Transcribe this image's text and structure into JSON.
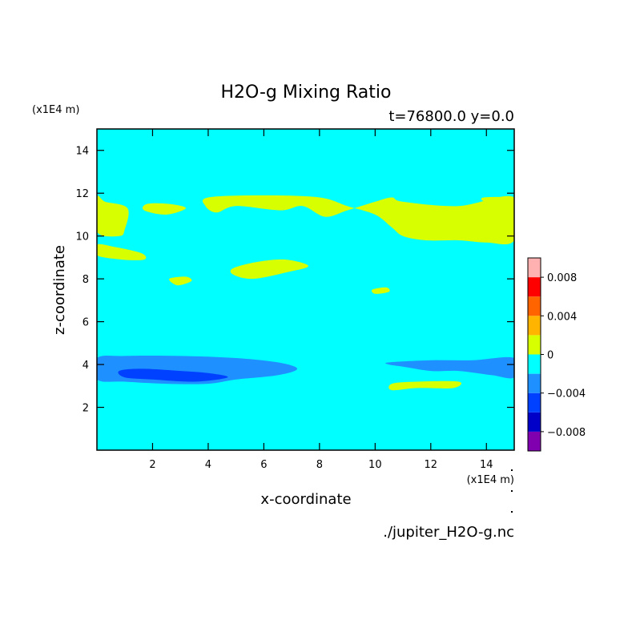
{
  "chart_data": {
    "type": "heatmap",
    "title": "H2O-g Mixing Ratio",
    "subtitle": "t=76800.0 y=0.0",
    "xlabel": "x-coordinate",
    "ylabel": "z-coordinate",
    "x_unit": "(x1E4 m)",
    "y_unit": "(x1E4 m)",
    "source": "./jupiter_H2O-g.nc",
    "xlim": [
      0,
      15
    ],
    "ylim": [
      0,
      15
    ],
    "x_ticks": [
      2,
      4,
      6,
      8,
      10,
      12,
      14
    ],
    "y_ticks": [
      2,
      4,
      6,
      8,
      10,
      12,
      14
    ],
    "background_level": "-0.002 to 0",
    "colorbar": {
      "levels": [
        {
          "range": [
            -0.01,
            -0.008
          ],
          "color": "#8000b0"
        },
        {
          "range": [
            -0.008,
            -0.006
          ],
          "color": "#0000c8"
        },
        {
          "range": [
            -0.006,
            -0.004
          ],
          "color": "#0040ff"
        },
        {
          "range": [
            -0.004,
            -0.002
          ],
          "color": "#1e90ff"
        },
        {
          "range": [
            -0.002,
            0
          ],
          "color": "#00ffff"
        },
        {
          "range": [
            0,
            0.002
          ],
          "color": "#d8ff00"
        },
        {
          "range": [
            0.002,
            0.004
          ],
          "color": "#ffb400"
        },
        {
          "range": [
            0.004,
            0.006
          ],
          "color": "#ff6400"
        },
        {
          "range": [
            0.006,
            0.008
          ],
          "color": "#ff0000"
        },
        {
          "range": [
            0.008,
            0.01
          ],
          "color": "#ffb0b0"
        }
      ],
      "tick_labels": [
        {
          "value": 0.008,
          "label": "0.008"
        },
        {
          "value": 0.004,
          "label": "0.004"
        },
        {
          "value": 0,
          "label": "0"
        },
        {
          "value": -0.004,
          "label": "−0.004"
        },
        {
          "value": -0.008,
          "label": "−0.008"
        }
      ]
    },
    "regions": [
      {
        "name": "moist-band-upper",
        "level": "0 to 0.002",
        "color": "#d8ff00",
        "points": [
          [
            0,
            11.8
          ],
          [
            0.3,
            11.6
          ],
          [
            1.1,
            11.3
          ],
          [
            1.0,
            10.3
          ],
          [
            0.8,
            10.0
          ],
          [
            0,
            10.2
          ]
        ]
      },
      {
        "name": "moist-band-upper-left-strip",
        "level": "0 to 0.002",
        "color": "#d8ff00",
        "points": [
          [
            0,
            9.6
          ],
          [
            0.6,
            9.5
          ],
          [
            1.6,
            9.2
          ],
          [
            1.7,
            8.9
          ],
          [
            0.9,
            8.9
          ],
          [
            0,
            9.1
          ]
        ]
      },
      {
        "name": "moist-band-upper-small",
        "level": "0 to 0.002",
        "color": "#d8ff00",
        "points": [
          [
            1.8,
            11.5
          ],
          [
            2.6,
            11.5
          ],
          [
            3.2,
            11.3
          ],
          [
            2.5,
            11.0
          ],
          [
            1.7,
            11.2
          ]
        ]
      },
      {
        "name": "moist-band-upper-center",
        "level": "0 to 0.002",
        "color": "#d8ff00",
        "points": [
          [
            4.0,
            11.8
          ],
          [
            6.0,
            11.9
          ],
          [
            8.0,
            11.8
          ],
          [
            9.0,
            11.4
          ],
          [
            10.0,
            11.0
          ],
          [
            10.6,
            10.4
          ],
          [
            11.0,
            10.0
          ],
          [
            11.8,
            9.8
          ],
          [
            13.0,
            9.8
          ],
          [
            14.0,
            9.7
          ],
          [
            15,
            9.8
          ],
          [
            15,
            11.8
          ],
          [
            13.0,
            11.4
          ],
          [
            11.0,
            11.6
          ],
          [
            10.6,
            11.8
          ],
          [
            10.0,
            11.6
          ],
          [
            9.0,
            11.2
          ],
          [
            8.2,
            10.9
          ],
          [
            7.4,
            11.4
          ],
          [
            6.6,
            11.2
          ],
          [
            5.0,
            11.4
          ],
          [
            4.3,
            11.1
          ],
          [
            3.9,
            11.4
          ]
        ]
      },
      {
        "name": "moist-band-right-strip",
        "level": "0 to 0.002",
        "color": "#d8ff00",
        "points": [
          [
            13.9,
            11.8
          ],
          [
            15,
            11.8
          ],
          [
            15,
            11.6
          ],
          [
            14.0,
            11.6
          ]
        ]
      },
      {
        "name": "moist-blob-middle",
        "level": "0 to 0.002",
        "color": "#d8ff00",
        "points": [
          [
            4.9,
            8.5
          ],
          [
            5.8,
            8.8
          ],
          [
            6.8,
            8.9
          ],
          [
            7.6,
            8.6
          ],
          [
            6.8,
            8.3
          ],
          [
            5.6,
            8.0
          ],
          [
            4.9,
            8.2
          ]
        ]
      },
      {
        "name": "moist-blob-small-left",
        "level": "0 to 0.002",
        "color": "#d8ff00",
        "points": [
          [
            2.6,
            8.0
          ],
          [
            3.2,
            8.1
          ],
          [
            3.4,
            7.9
          ],
          [
            2.9,
            7.7
          ]
        ]
      },
      {
        "name": "moist-blob-small-right",
        "level": "0 to 0.002",
        "color": "#d8ff00",
        "points": [
          [
            9.9,
            7.5
          ],
          [
            10.4,
            7.6
          ],
          [
            10.5,
            7.4
          ],
          [
            10.0,
            7.3
          ]
        ]
      },
      {
        "name": "moist-strip-lower-right",
        "level": "0 to 0.002",
        "color": "#d8ff00",
        "points": [
          [
            10.6,
            3.1
          ],
          [
            11.5,
            3.2
          ],
          [
            13.0,
            3.2
          ],
          [
            12.8,
            2.9
          ],
          [
            11.5,
            2.9
          ],
          [
            10.6,
            2.8
          ]
        ]
      },
      {
        "name": "dry-band-lower-left",
        "level": "-0.004 to -0.002",
        "color": "#1e90ff",
        "points": [
          [
            0,
            4.3
          ],
          [
            1.0,
            4.4
          ],
          [
            3.0,
            4.4
          ],
          [
            5.0,
            4.3
          ],
          [
            6.5,
            4.1
          ],
          [
            7.2,
            3.8
          ],
          [
            6.5,
            3.5
          ],
          [
            5.0,
            3.3
          ],
          [
            4.0,
            3.1
          ],
          [
            2.5,
            3.1
          ],
          [
            1.0,
            3.2
          ],
          [
            0,
            3.3
          ]
        ]
      },
      {
        "name": "dry-core-lower-left",
        "level": "-0.006 to -0.004",
        "color": "#0040ff",
        "points": [
          [
            0.8,
            3.7
          ],
          [
            1.6,
            3.8
          ],
          [
            3.0,
            3.7
          ],
          [
            4.0,
            3.6
          ],
          [
            4.7,
            3.4
          ],
          [
            3.5,
            3.2
          ],
          [
            2.0,
            3.3
          ],
          [
            1.0,
            3.4
          ]
        ]
      },
      {
        "name": "dry-band-lower-right",
        "level": "-0.004 to -0.002",
        "color": "#1e90ff",
        "points": [
          [
            10.5,
            4.1
          ],
          [
            12.0,
            4.2
          ],
          [
            13.5,
            4.2
          ],
          [
            15,
            4.3
          ],
          [
            15,
            3.4
          ],
          [
            14.2,
            3.5
          ],
          [
            13.0,
            3.7
          ],
          [
            12.0,
            3.7
          ],
          [
            11.0,
            3.9
          ],
          [
            10.5,
            4.0
          ]
        ]
      }
    ]
  }
}
